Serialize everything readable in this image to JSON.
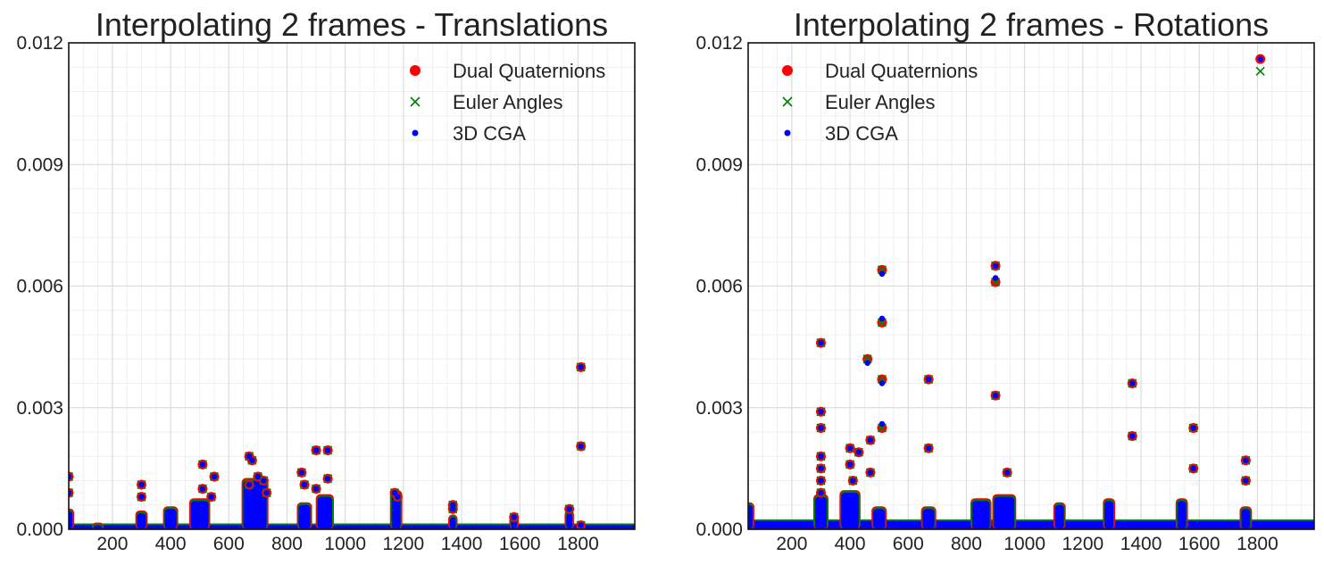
{
  "colors": {
    "dual": "#ff0000",
    "euler": "#008000",
    "cga": "#0000ff",
    "grid": "#d9d9d9"
  },
  "legend_labels": [
    "Dual Quaternions",
    "Euler Angles",
    "3D CGA"
  ],
  "chart_data": [
    {
      "type": "scatter",
      "title": "Interpolating 2 frames - Translations",
      "xlabel": "",
      "ylabel": "",
      "xlim": [
        50,
        1995
      ],
      "ylim": [
        0,
        0.012
      ],
      "x_ticks": [
        200,
        400,
        600,
        800,
        1000,
        1200,
        1400,
        1600,
        1800
      ],
      "y_ticks": [
        "0.000",
        "0.003",
        "0.006",
        "0.009",
        "0.012"
      ],
      "grid": true,
      "legend_position": "top-right",
      "baseline_level": 0.0001,
      "clusters": [
        {
          "x": 50,
          "width": 25,
          "height": 0.00045
        },
        {
          "x": 150,
          "width": 30,
          "height": 0.0001
        },
        {
          "x": 300,
          "width": 30,
          "height": 0.0004
        },
        {
          "x": 400,
          "width": 40,
          "height": 0.0005
        },
        {
          "x": 500,
          "width": 60,
          "height": 0.0007
        },
        {
          "x": 690,
          "width": 80,
          "height": 0.0012
        },
        {
          "x": 860,
          "width": 40,
          "height": 0.0006
        },
        {
          "x": 930,
          "width": 50,
          "height": 0.0008
        },
        {
          "x": 1175,
          "width": 30,
          "height": 0.0009
        },
        {
          "x": 1370,
          "width": 20,
          "height": 0.0003
        },
        {
          "x": 1580,
          "width": 20,
          "height": 0.0003
        },
        {
          "x": 1770,
          "width": 20,
          "height": 0.0004
        }
      ],
      "series": [
        {
          "name": "Dual Quaternions",
          "marker": "circle",
          "x": [
            50,
            50,
            300,
            300,
            510,
            510,
            540,
            550,
            670,
            670,
            680,
            700,
            720,
            730,
            850,
            860,
            900,
            900,
            940,
            940,
            1170,
            1180,
            1370,
            1370,
            1580,
            1770,
            1810,
            1810,
            1810
          ],
          "y": [
            0.0013,
            0.0009,
            0.0011,
            0.0008,
            0.0016,
            0.001,
            0.0008,
            0.0013,
            0.0018,
            0.0011,
            0.0017,
            0.0013,
            0.0012,
            0.0009,
            0.0014,
            0.0011,
            0.00195,
            0.001,
            0.00195,
            0.00125,
            0.0009,
            0.0008,
            0.0006,
            0.0005,
            0.0003,
            0.0005,
            0.004,
            0.00205,
            0.0001
          ]
        },
        {
          "name": "Euler Angles",
          "marker": "x",
          "x": [
            50,
            50,
            300,
            300,
            510,
            510,
            540,
            550,
            670,
            670,
            680,
            700,
            720,
            730,
            850,
            860,
            900,
            900,
            940,
            940,
            1170,
            1180,
            1370,
            1370,
            1580,
            1770,
            1810,
            1810,
            1810
          ],
          "y": [
            0.0013,
            0.0009,
            0.0011,
            0.0008,
            0.0016,
            0.001,
            0.0008,
            0.0013,
            0.0018,
            0.0011,
            0.0017,
            0.0013,
            0.0012,
            0.0009,
            0.0014,
            0.0011,
            0.00195,
            0.001,
            0.00195,
            0.00125,
            0.0009,
            0.0008,
            0.0006,
            0.0005,
            0.0003,
            0.0005,
            0.004,
            0.00205,
            0.0001
          ]
        },
        {
          "name": "3D CGA",
          "marker": "dot",
          "x": [
            50,
            50,
            300,
            300,
            510,
            510,
            540,
            550,
            670,
            670,
            680,
            700,
            720,
            730,
            850,
            860,
            900,
            900,
            940,
            940,
            1170,
            1180,
            1370,
            1370,
            1580,
            1770,
            1810,
            1810,
            1810
          ],
          "y": [
            0.0013,
            0.0009,
            0.0011,
            0.0008,
            0.0016,
            0.001,
            0.0008,
            0.0013,
            0.0018,
            0.0011,
            0.0017,
            0.0013,
            0.0012,
            0.0009,
            0.0014,
            0.0011,
            0.00195,
            0.001,
            0.00195,
            0.00125,
            0.0009,
            0.0008,
            0.0006,
            0.0005,
            0.0003,
            0.0005,
            0.004,
            0.00205,
            0.0001
          ]
        }
      ]
    },
    {
      "type": "scatter",
      "title": "Interpolating 2 frames - Rotations",
      "xlabel": "",
      "ylabel": "",
      "xlim": [
        50,
        1995
      ],
      "ylim": [
        0,
        0.012
      ],
      "x_ticks": [
        200,
        400,
        600,
        800,
        1000,
        1200,
        1400,
        1600,
        1800
      ],
      "y_ticks": [
        "0.000",
        "0.003",
        "0.006",
        "0.009",
        "0.012"
      ],
      "grid": true,
      "legend_position": "top-left",
      "baseline_level": 0.0002,
      "clusters": [
        {
          "x": 50,
          "width": 30,
          "height": 0.0006
        },
        {
          "x": 300,
          "width": 40,
          "height": 0.0008
        },
        {
          "x": 400,
          "width": 60,
          "height": 0.0009
        },
        {
          "x": 500,
          "width": 40,
          "height": 0.0005
        },
        {
          "x": 670,
          "width": 40,
          "height": 0.0005
        },
        {
          "x": 850,
          "width": 60,
          "height": 0.0007
        },
        {
          "x": 930,
          "width": 70,
          "height": 0.0008
        },
        {
          "x": 1120,
          "width": 30,
          "height": 0.0006
        },
        {
          "x": 1290,
          "width": 30,
          "height": 0.0007
        },
        {
          "x": 1540,
          "width": 30,
          "height": 0.0007
        },
        {
          "x": 1760,
          "width": 30,
          "height": 0.0005
        }
      ],
      "series": [
        {
          "name": "Dual Quaternions",
          "marker": "circle",
          "x": [
            300,
            300,
            300,
            300,
            300,
            300,
            300,
            400,
            400,
            410,
            430,
            460,
            470,
            470,
            510,
            510,
            510,
            510,
            670,
            670,
            900,
            900,
            900,
            940,
            1370,
            1370,
            1580,
            1580,
            1760,
            1760,
            1810
          ],
          "y": [
            0.0046,
            0.0029,
            0.0025,
            0.0018,
            0.0015,
            0.0012,
            0.0009,
            0.002,
            0.0016,
            0.0012,
            0.0019,
            0.0042,
            0.0022,
            0.0014,
            0.0064,
            0.0051,
            0.0037,
            0.0025,
            0.0037,
            0.002,
            0.0065,
            0.0061,
            0.0033,
            0.0014,
            0.0036,
            0.0023,
            0.0025,
            0.0015,
            0.0017,
            0.0012,
            0.0116
          ]
        },
        {
          "name": "Euler Angles",
          "marker": "x",
          "x": [
            300,
            300,
            300,
            300,
            300,
            300,
            300,
            400,
            400,
            410,
            430,
            460,
            470,
            470,
            510,
            510,
            510,
            510,
            670,
            670,
            900,
            900,
            900,
            940,
            1370,
            1370,
            1580,
            1580,
            1760,
            1760,
            1810
          ],
          "y": [
            0.0046,
            0.0029,
            0.0025,
            0.0018,
            0.0015,
            0.0012,
            0.0009,
            0.002,
            0.0016,
            0.0012,
            0.0019,
            0.0042,
            0.0022,
            0.0014,
            0.0064,
            0.0051,
            0.0037,
            0.0025,
            0.0037,
            0.002,
            0.0065,
            0.0061,
            0.0033,
            0.0014,
            0.0036,
            0.0023,
            0.0025,
            0.0015,
            0.0017,
            0.0012,
            0.0113
          ]
        },
        {
          "name": "3D CGA",
          "marker": "dot",
          "x": [
            300,
            300,
            300,
            300,
            300,
            300,
            300,
            400,
            400,
            410,
            430,
            460,
            470,
            470,
            510,
            510,
            510,
            510,
            670,
            670,
            900,
            900,
            900,
            940,
            1370,
            1370,
            1580,
            1580,
            1760,
            1760,
            1810
          ],
          "y": [
            0.0046,
            0.0029,
            0.0025,
            0.0018,
            0.0015,
            0.0012,
            0.0009,
            0.002,
            0.0016,
            0.0012,
            0.0019,
            0.0041,
            0.0022,
            0.0014,
            0.0063,
            0.0052,
            0.0036,
            0.0026,
            0.0037,
            0.002,
            0.0065,
            0.0062,
            0.0033,
            0.0014,
            0.0036,
            0.0023,
            0.0025,
            0.0015,
            0.0017,
            0.0012,
            0.0116
          ]
        }
      ]
    }
  ]
}
